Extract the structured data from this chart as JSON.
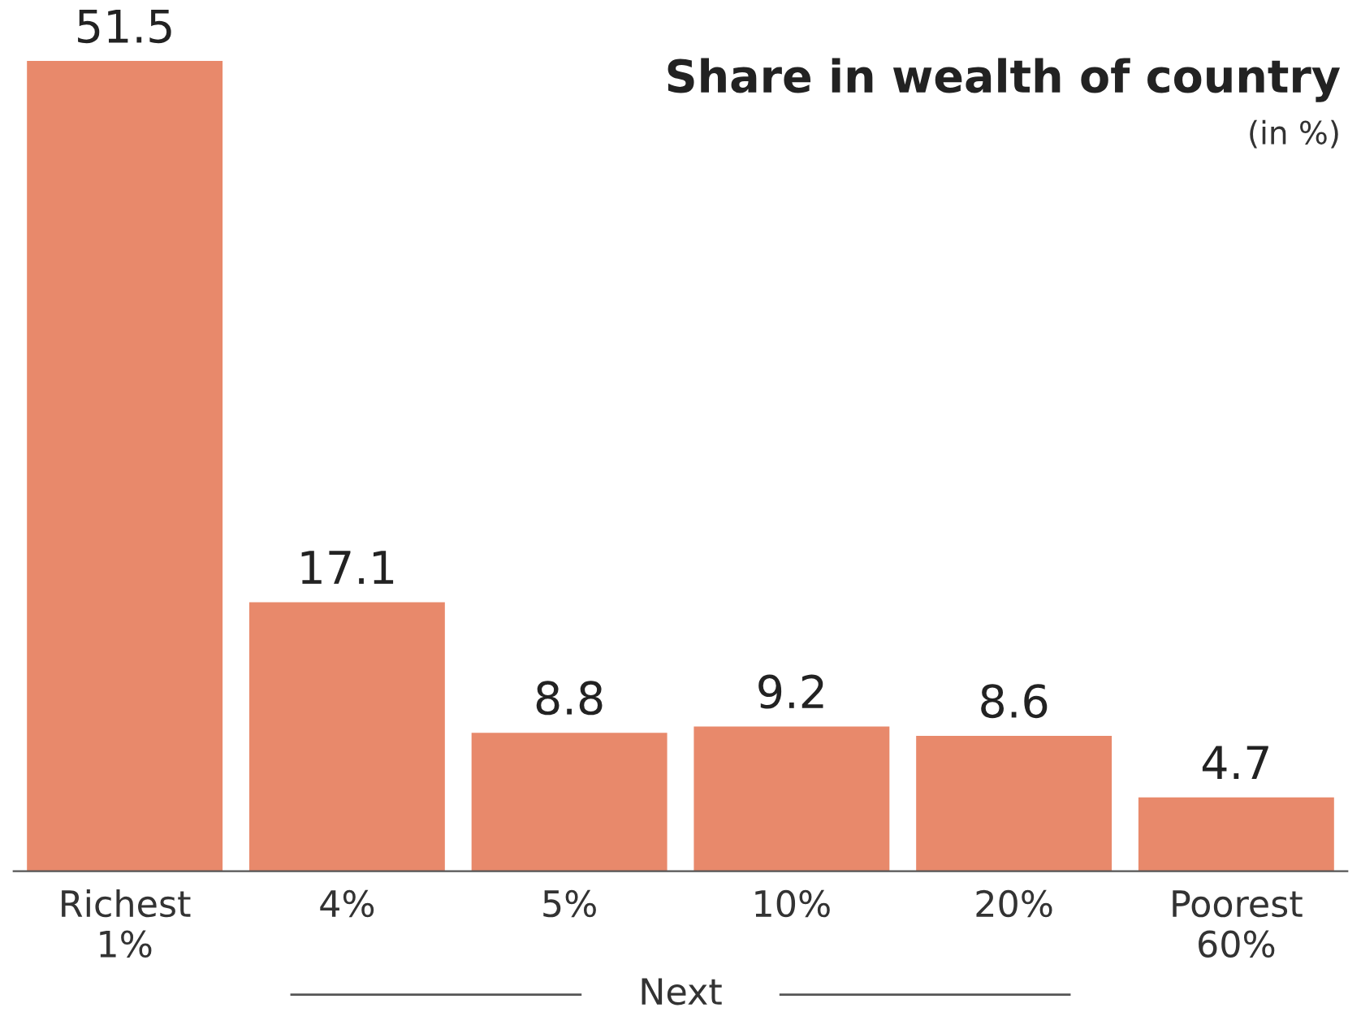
{
  "chart_data": {
    "type": "bar",
    "title": "Share in wealth of country",
    "subtitle": "(in %)",
    "categories": [
      "Richest\n1%",
      "4%",
      "5%",
      "10%",
      "20%",
      "Poorest\n60%"
    ],
    "values": [
      51.5,
      17.1,
      8.8,
      9.2,
      8.6,
      4.7
    ],
    "color": "#e8896b",
    "data_labels": true,
    "grid": false,
    "legend": false,
    "tick_labels": "x",
    "annotations": [
      "Next"
    ]
  }
}
